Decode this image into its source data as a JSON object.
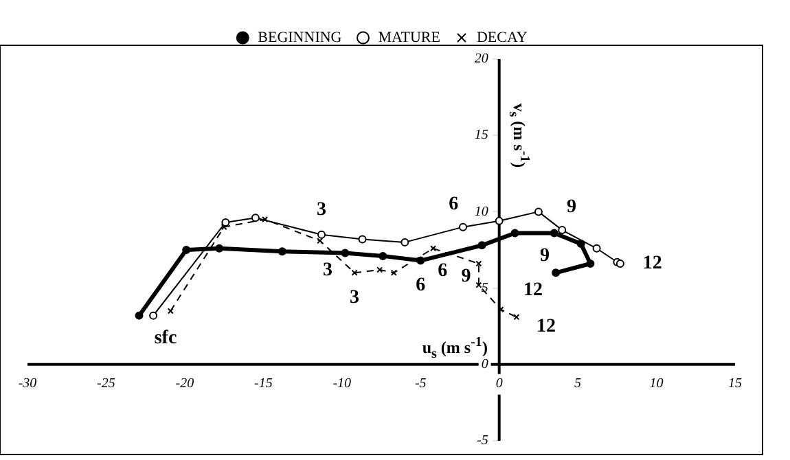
{
  "chart_data": {
    "type": "line",
    "xlabel": "u$_{s}$ (m s$^{-1}$)",
    "ylabel": "v$_{s}$ (m s$^{-1}$)",
    "xlim": [
      -30,
      15
    ],
    "xticks": [
      -30,
      -25,
      -20,
      -15,
      -10,
      -5,
      0,
      5,
      10,
      15
    ],
    "ylim": [
      -5,
      20
    ],
    "yticks": [
      -5,
      0,
      5,
      10,
      15,
      20
    ],
    "grid": false,
    "legend": "top",
    "series": [
      {
        "name": "BEGINNING",
        "color": "#000000",
        "marker": "circle",
        "line_style": "solid",
        "x": [
          -22.9,
          -19.9,
          -17.8,
          -13.8,
          -9.8,
          -7.4,
          -5.0,
          -1.1,
          1.0,
          3.5,
          5.2,
          5.8,
          3.6
        ],
        "values": [
          3.2,
          7.5,
          7.6,
          7.4,
          7.3,
          7.1,
          6.8,
          7.8,
          8.6,
          8.6,
          7.9,
          6.6,
          6.0
        ]
      },
      {
        "name": "MATURE",
        "color": "#000000",
        "marker": "circle",
        "line_style": "solid",
        "x": [
          -22.0,
          -17.4,
          -15.5,
          -11.3,
          -8.7,
          -6.0,
          -2.3,
          0,
          2.5,
          4.0,
          6.2,
          7.5,
          7.7
        ],
        "values": [
          3.2,
          9.3,
          9.6,
          8.5,
          8.2,
          8.0,
          9.0,
          9.4,
          10.0,
          8.8,
          7.6,
          6.7,
          6.6
        ]
      },
      {
        "name": "DECAY",
        "color": "#000000",
        "marker": "cross",
        "line_style": "dashed",
        "x": [
          -20.9,
          -17.5,
          -14.9,
          -11.4,
          -9.2,
          -7.6,
          -6.7,
          -4.2,
          -1.3,
          -1.3,
          0.1,
          1.1
        ],
        "values": [
          3.5,
          9.0,
          9.5,
          8.1,
          6.0,
          6.2,
          6.0,
          7.6,
          6.6,
          5.2,
          3.6,
          3.1
        ]
      }
    ],
    "annotations": [
      {
        "text": "sfc",
        "x": -22.0,
        "y": 3.2
      },
      {
        "text": "3",
        "x": -11.3,
        "y": 8.5
      },
      {
        "text": "3",
        "x": -9.8,
        "y": 7.3
      },
      {
        "text": "3",
        "x": -9.2,
        "y": 6.0
      },
      {
        "text": "6",
        "x": -2.3,
        "y": 9.0
      },
      {
        "text": "6",
        "x": -5.0,
        "y": 6.8
      },
      {
        "text": "6",
        "x": -4.2,
        "y": 7.6
      },
      {
        "text": "9",
        "x": 4.0,
        "y": 8.8
      },
      {
        "text": "9",
        "x": 3.5,
        "y": 8.6
      },
      {
        "text": "9",
        "x": -1.3,
        "y": 6.6
      },
      {
        "text": "12",
        "x": 3.6,
        "y": 6.0
      },
      {
        "text": "12",
        "x": 7.7,
        "y": 6.6
      },
      {
        "text": "12",
        "x": 1.1,
        "y": 3.1
      }
    ]
  }
}
